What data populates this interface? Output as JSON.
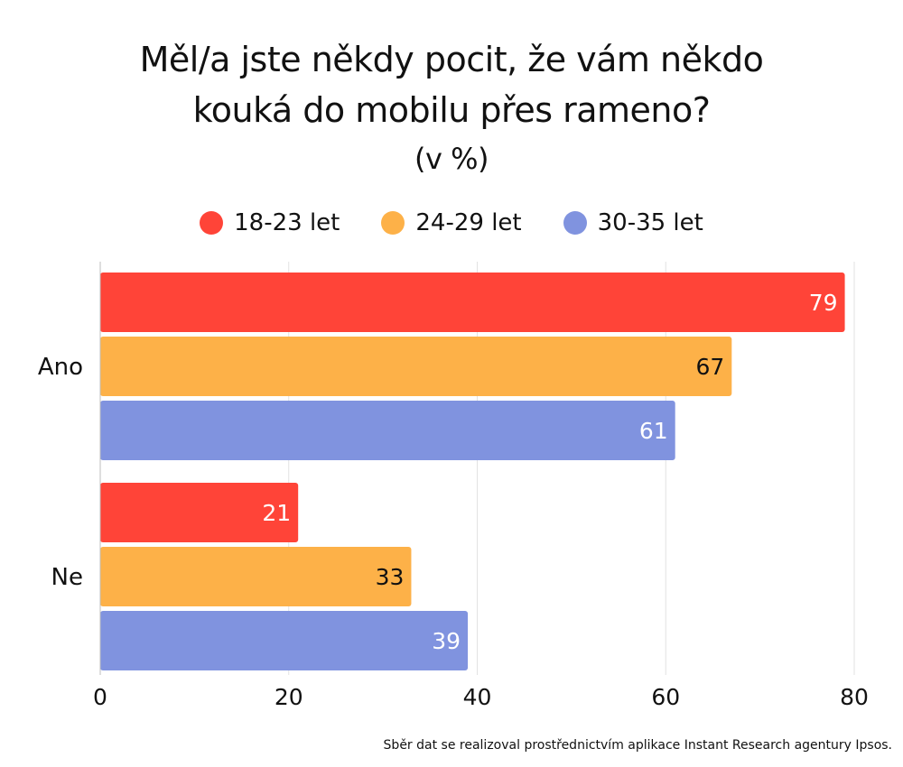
{
  "chart_data": {
    "type": "bar",
    "orientation": "horizontal",
    "title_lines": [
      "Měl/a jste někdy pocit, že vám někdo",
      "kouká do mobilu přes rameno?"
    ],
    "subtitle": "(v %)",
    "categories": [
      "Ano",
      "Ne"
    ],
    "series": [
      {
        "name": "18-23 let",
        "color": "#ff4438",
        "label_color": "#ffffff",
        "values": [
          79,
          21
        ]
      },
      {
        "name": "24-29 let",
        "color": "#fdb148",
        "label_color": "#111111",
        "values": [
          67,
          33
        ]
      },
      {
        "name": "30-35 let",
        "color": "#8093df",
        "label_color": "#ffffff",
        "values": [
          61,
          39
        ]
      }
    ],
    "xlim": [
      0,
      80
    ],
    "xticks": [
      0,
      20,
      40,
      60,
      80
    ],
    "grid": true,
    "legend_position": "top-center"
  },
  "footnote": "Sběr dat se realizoval prostřednictvím aplikace Instant Research agentury Ipsos."
}
